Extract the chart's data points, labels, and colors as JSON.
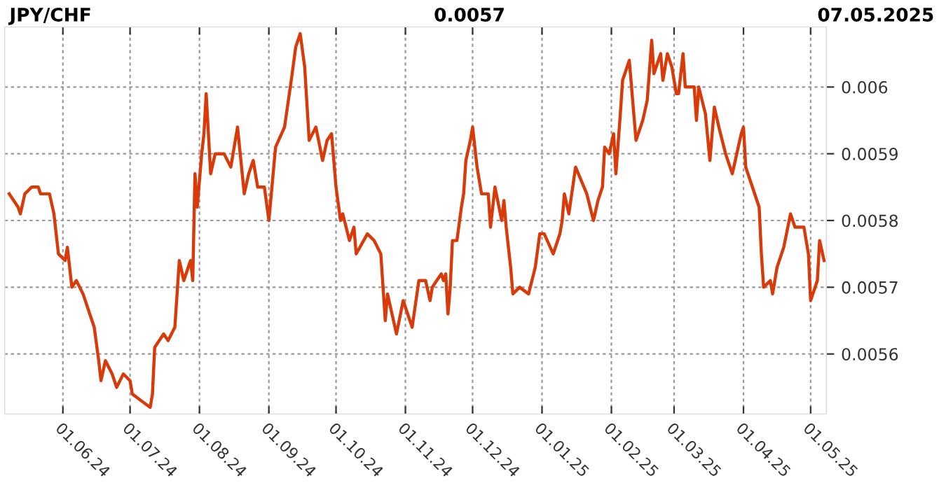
{
  "chart_data": {
    "type": "line",
    "title": "JPY/CHF",
    "annotations": [
      "0.0057",
      "07.05.2025"
    ],
    "x": [
      "2024-05-08",
      "2024-05-12",
      "2024-05-13",
      "2024-05-15",
      "2024-05-18",
      "2024-05-21",
      "2024-05-22",
      "2024-05-23",
      "2024-05-26",
      "2024-05-28",
      "2024-05-30",
      "2024-06-02",
      "2024-06-03",
      "2024-06-05",
      "2024-06-07",
      "2024-06-10",
      "2024-06-13",
      "2024-06-15",
      "2024-06-17",
      "2024-06-18",
      "2024-06-20",
      "2024-06-23",
      "2024-06-25",
      "2024-06-28",
      "2024-07-01",
      "2024-07-02",
      "2024-07-06",
      "2024-07-10",
      "2024-07-11",
      "2024-07-12",
      "2024-07-16",
      "2024-07-18",
      "2024-07-21",
      "2024-07-23",
      "2024-07-25",
      "2024-07-28",
      "2024-07-29",
      "2024-07-30",
      "2024-07-31",
      "2024-08-02",
      "2024-08-03",
      "2024-08-04",
      "2024-08-06",
      "2024-08-08",
      "2024-08-12",
      "2024-08-15",
      "2024-08-18",
      "2024-08-21",
      "2024-08-23",
      "2024-08-25",
      "2024-08-27",
      "2024-08-30",
      "2024-09-01",
      "2024-09-04",
      "2024-09-08",
      "2024-09-11",
      "2024-09-13",
      "2024-09-15",
      "2024-09-17",
      "2024-09-19",
      "2024-09-22",
      "2024-09-25",
      "2024-09-27",
      "2024-09-29",
      "2024-10-01",
      "2024-10-03",
      "2024-10-04",
      "2024-10-07",
      "2024-10-09",
      "2024-10-10",
      "2024-10-15",
      "2024-10-18",
      "2024-10-21",
      "2024-10-22",
      "2024-10-23",
      "2024-10-24",
      "2024-10-28",
      "2024-10-31",
      "2024-11-04",
      "2024-11-07",
      "2024-11-10",
      "2024-11-12",
      "2024-11-13",
      "2024-11-17",
      "2024-11-18",
      "2024-11-19",
      "2024-11-20",
      "2024-11-21",
      "2024-11-22",
      "2024-11-24",
      "2024-11-26",
      "2024-11-27",
      "2024-11-28",
      "2024-11-30",
      "2024-12-01",
      "2024-12-03",
      "2024-12-05",
      "2024-12-08",
      "2024-12-09",
      "2024-12-11",
      "2024-12-14",
      "2024-12-15",
      "2024-12-16",
      "2024-12-18",
      "2024-12-19",
      "2024-12-22",
      "2024-12-26",
      "2024-12-29",
      "2024-12-31",
      "2025-01-02",
      "2025-01-06",
      "2025-01-09",
      "2025-01-10",
      "2025-01-11",
      "2025-01-13",
      "2025-01-16",
      "2025-01-21",
      "2025-01-24",
      "2025-01-26",
      "2025-01-28",
      "2025-01-29",
      "2025-01-31",
      "2025-02-02",
      "2025-02-03",
      "2025-02-05",
      "2025-02-06",
      "2025-02-09",
      "2025-02-11",
      "2025-02-12",
      "2025-02-15",
      "2025-02-17",
      "2025-02-19",
      "2025-02-20",
      "2025-02-23",
      "2025-02-24",
      "2025-02-26",
      "2025-02-28",
      "2025-03-02",
      "2025-03-03",
      "2025-03-05",
      "2025-03-06",
      "2025-03-10",
      "2025-03-11",
      "2025-03-12",
      "2025-03-15",
      "2025-03-17",
      "2025-03-19",
      "2025-03-21",
      "2025-03-24",
      "2025-03-27",
      "2025-03-29",
      "2025-03-31",
      "2025-04-01",
      "2025-04-02",
      "2025-04-05",
      "2025-04-08",
      "2025-04-09",
      "2025-04-10",
      "2025-04-13",
      "2025-04-14",
      "2025-04-16",
      "2025-04-19",
      "2025-04-22",
      "2025-04-24",
      "2025-04-28",
      "2025-04-30",
      "2025-05-01",
      "2025-05-04",
      "2025-05-05",
      "2025-05-07"
    ],
    "series": [
      {
        "color": "#d83a0a",
        "values": [
          0.00584,
          0.00582,
          0.00581,
          0.00584,
          0.00585,
          0.00585,
          0.00584,
          0.00584,
          0.00584,
          0.00581,
          0.00575,
          0.00574,
          0.00576,
          0.0057,
          0.00571,
          0.00569,
          0.00566,
          0.00564,
          0.00559,
          0.00556,
          0.00559,
          0.00557,
          0.00555,
          0.00557,
          0.00556,
          0.00554,
          0.00553,
          0.00552,
          0.00554,
          0.00561,
          0.00563,
          0.00562,
          0.00564,
          0.00574,
          0.00571,
          0.00574,
          0.00571,
          0.00587,
          0.00582,
          0.0059,
          0.00593,
          0.00599,
          0.00587,
          0.0059,
          0.0059,
          0.00588,
          0.00594,
          0.00584,
          0.00587,
          0.00589,
          0.00585,
          0.00585,
          0.0058,
          0.00591,
          0.00594,
          0.00601,
          0.00606,
          0.00608,
          0.00603,
          0.00592,
          0.00594,
          0.00589,
          0.00592,
          0.00593,
          0.00585,
          0.0058,
          0.00581,
          0.00577,
          0.00579,
          0.00575,
          0.00578,
          0.00577,
          0.00575,
          0.0057,
          0.00565,
          0.00569,
          0.00563,
          0.00568,
          0.00564,
          0.00571,
          0.00571,
          0.00568,
          0.0057,
          0.00572,
          0.00571,
          0.00572,
          0.00566,
          0.0057,
          0.00577,
          0.00577,
          0.00582,
          0.00584,
          0.00589,
          0.00592,
          0.00594,
          0.00588,
          0.00584,
          0.00584,
          0.00579,
          0.00585,
          0.0058,
          0.00583,
          0.00579,
          0.00573,
          0.00569,
          0.0057,
          0.00569,
          0.00573,
          0.00578,
          0.00578,
          0.00575,
          0.00578,
          0.0058,
          0.00584,
          0.00581,
          0.00588,
          0.00584,
          0.0058,
          0.00583,
          0.00585,
          0.00591,
          0.0059,
          0.00593,
          0.00587,
          0.00596,
          0.00601,
          0.00604,
          0.00596,
          0.00592,
          0.00595,
          0.00598,
          0.00607,
          0.00602,
          0.00605,
          0.00601,
          0.00605,
          0.00603,
          0.00599,
          0.00599,
          0.00605,
          0.006,
          0.006,
          0.00595,
          0.006,
          0.00596,
          0.00589,
          0.00597,
          0.00594,
          0.0059,
          0.00587,
          0.0059,
          0.00593,
          0.00594,
          0.00588,
          0.00585,
          0.00582,
          0.00575,
          0.0057,
          0.00571,
          0.00569,
          0.00573,
          0.00576,
          0.00581,
          0.00579,
          0.00579,
          0.00575,
          0.00568,
          0.00571,
          0.00577,
          0.00574
        ]
      }
    ],
    "xlim": [
      "2024-05-06",
      "2025-05-08"
    ],
    "ylim": [
      0.00551,
      0.00609
    ],
    "xticks": [
      {
        "value": "2024-06-01",
        "label": "01.06.24"
      },
      {
        "value": "2024-07-01",
        "label": "01.07.24"
      },
      {
        "value": "2024-08-01",
        "label": "01.08.24"
      },
      {
        "value": "2024-09-01",
        "label": "01.09.24"
      },
      {
        "value": "2024-10-01",
        "label": "01.10.24"
      },
      {
        "value": "2024-11-01",
        "label": "01.11.24"
      },
      {
        "value": "2024-12-01",
        "label": "01.12.24"
      },
      {
        "value": "2025-01-01",
        "label": "01.01.25"
      },
      {
        "value": "2025-02-01",
        "label": "01.02.25"
      },
      {
        "value": "2025-03-01",
        "label": "01.03.25"
      },
      {
        "value": "2025-04-01",
        "label": "01.04.25"
      },
      {
        "value": "2025-05-01",
        "label": "01.05.25"
      }
    ],
    "yticks": [
      0.0056,
      0.0057,
      0.0058,
      0.0059,
      0.006
    ],
    "grid": true,
    "line_style": "solid",
    "marker": "none"
  }
}
